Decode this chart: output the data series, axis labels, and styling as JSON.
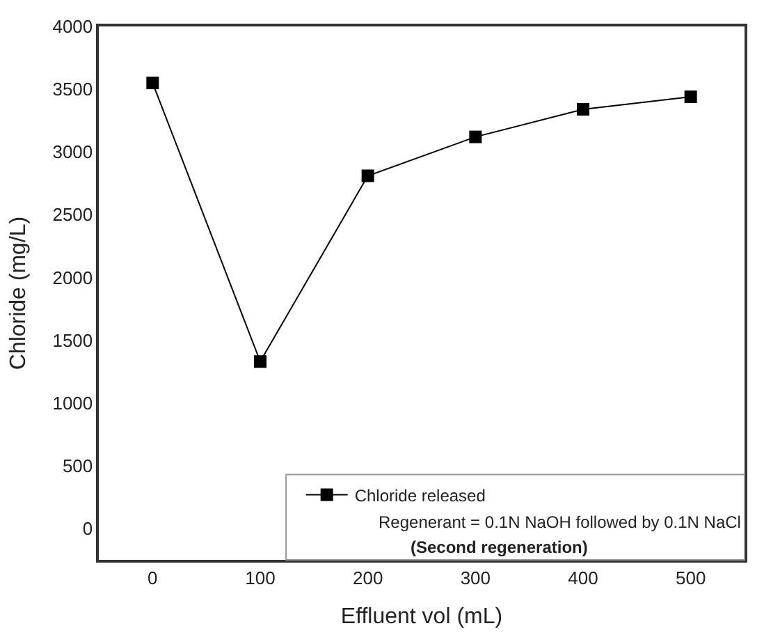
{
  "chart_data": {
    "type": "line",
    "xlabel": "Effluent vol (mL)",
    "ylabel": "Chloride (mg/L)",
    "x": [
      0,
      100,
      200,
      300,
      400,
      500
    ],
    "series": [
      {
        "name": "Chloride released",
        "color": "#000000",
        "values": [
          3550,
          1330,
          2810,
          3120,
          3340,
          3440
        ]
      }
    ],
    "xlim": [
      -50,
      550
    ],
    "xticks": [
      0,
      100,
      200,
      300,
      400,
      500
    ],
    "ylim": [
      -250,
      4000
    ],
    "yticks": [
      0,
      500,
      1000,
      1500,
      2000,
      2500,
      3000,
      3500,
      4000
    ],
    "legend": "bottom right",
    "marker": "square",
    "line_style": "solid",
    "annotations": [
      "Regenerant = 0.1N NaOH followed by 0.1N NaCl",
      "(Second regeneration)"
    ]
  }
}
